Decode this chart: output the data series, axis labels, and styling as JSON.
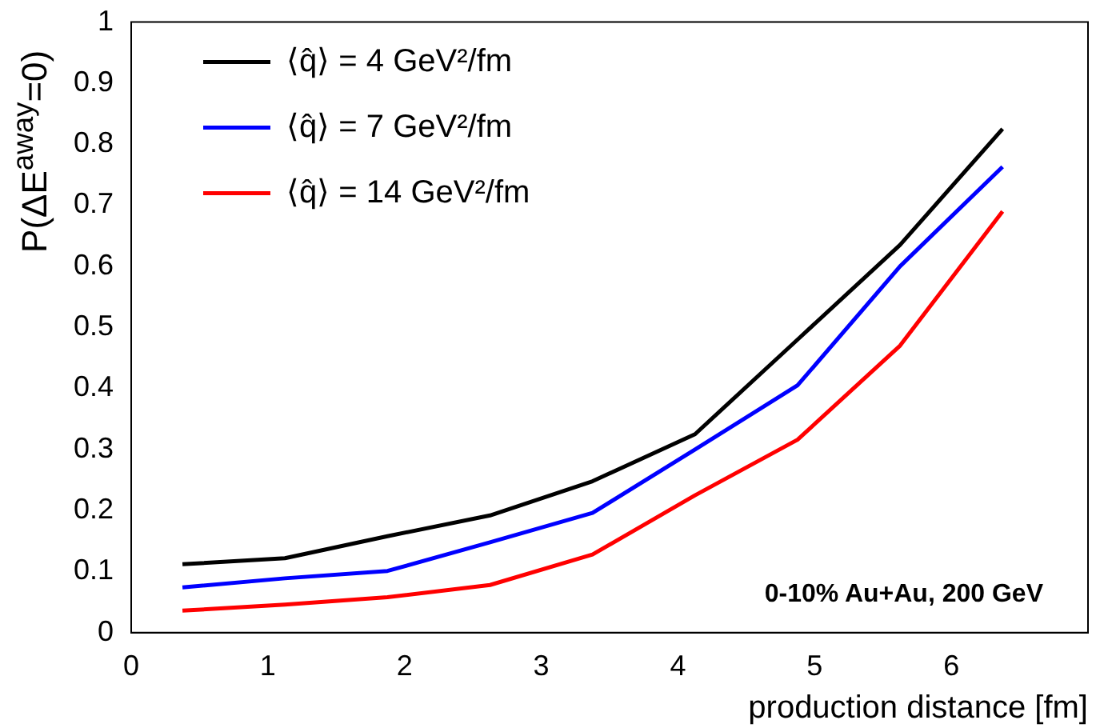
{
  "chart_data": {
    "type": "line",
    "xlabel": "production distance [fm]",
    "ylabel": "P(ΔE$^{away}$=0)",
    "x": [
      0.375,
      1.125,
      1.875,
      2.625,
      3.375,
      4.125,
      4.875,
      5.625,
      6.375
    ],
    "series": [
      {
        "name": "⟨q̂⟩ = 4 GeV²/fm",
        "color": "#000000",
        "values": [
          0.112,
          0.122,
          0.158,
          0.192,
          0.248,
          0.325,
          0.48,
          0.635,
          0.825
        ]
      },
      {
        "name": "⟨q̂⟩ = 7 GeV²/fm",
        "color": "#0000ff",
        "values": [
          0.074,
          0.089,
          0.101,
          0.148,
          0.196,
          0.3,
          0.405,
          0.6,
          0.763
        ]
      },
      {
        "name": "⟨q̂⟩ = 14 GeV²/fm",
        "color": "#ff0000",
        "values": [
          0.036,
          0.046,
          0.058,
          0.078,
          0.128,
          0.225,
          0.316,
          0.47,
          0.69
        ]
      }
    ],
    "xlim": [
      0,
      7
    ],
    "xticks": [
      0,
      1,
      2,
      3,
      4,
      5,
      6
    ],
    "ylim": [
      0,
      1
    ],
    "yticks": [
      0,
      0.1,
      0.2,
      0.3,
      0.4,
      0.5,
      0.6,
      0.7,
      0.8,
      0.9,
      1
    ],
    "grid": false,
    "legend": "top left",
    "marker": "none",
    "line_style": "solid",
    "annotations": [
      "0-10% Au+Au, 200 GeV"
    ]
  }
}
